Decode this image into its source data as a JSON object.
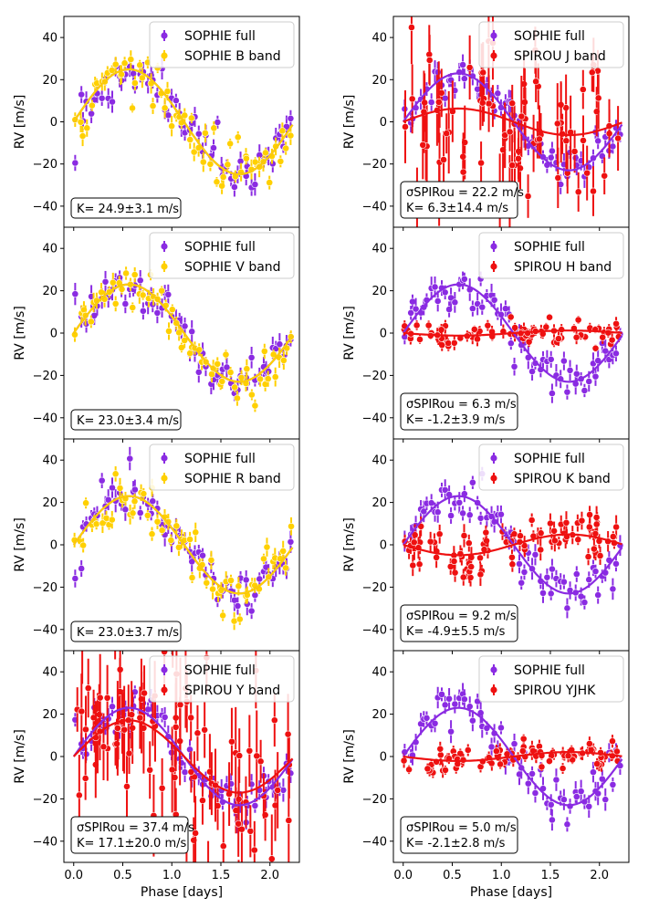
{
  "figure": {
    "ylabel": "RV [m/s]",
    "xlabel": "Phase [days]",
    "xticks": [
      "0.0",
      "0.5",
      "1.0",
      "1.5",
      "2.0"
    ],
    "yticks": [
      "40",
      "20",
      "0",
      "−20",
      "−40"
    ]
  },
  "colors": {
    "sophie_full": "#8a2be2",
    "sophie_band": "#ffd000",
    "spirou": "#ee1111"
  },
  "chart_data": [
    {
      "type": "scatter",
      "panel": "left-1",
      "xlim": [
        -0.1,
        2.3
      ],
      "ylim": [
        -50,
        50
      ],
      "series": [
        {
          "name": "SOPHIE full",
          "color": "purple",
          "model_amplitude": 24.9
        },
        {
          "name": "SOPHIE B band",
          "color": "yellow",
          "model_amplitude": 24.9
        }
      ],
      "legend": [
        "SOPHIE full",
        "SOPHIE B band"
      ],
      "legend_position": "top-right",
      "annotation": {
        "sigma": "",
        "k": "K= 24.9±3.1 m/s"
      }
    },
    {
      "type": "scatter",
      "panel": "right-1",
      "xlim": [
        -0.1,
        2.3
      ],
      "ylim": [
        -50,
        50
      ],
      "series": [
        {
          "name": "SOPHIE full",
          "color": "purple",
          "model_amplitude": 23.0
        },
        {
          "name": "SPIROU J band",
          "color": "red",
          "model_amplitude": 6.3
        }
      ],
      "legend": [
        "SOPHIE full",
        "SPIROU J band"
      ],
      "legend_position": "top-right",
      "annotation": {
        "sigma": "σSPIRou = 22.2 m/s",
        "k": "K= 6.3±14.4 m/s"
      }
    },
    {
      "type": "scatter",
      "panel": "left-2",
      "xlim": [
        -0.1,
        2.3
      ],
      "ylim": [
        -50,
        50
      ],
      "series": [
        {
          "name": "SOPHIE full",
          "color": "purple",
          "model_amplitude": 23.0
        },
        {
          "name": "SOPHIE V band",
          "color": "yellow",
          "model_amplitude": 23.0
        }
      ],
      "legend": [
        "SOPHIE full",
        "SOPHIE V band"
      ],
      "legend_position": "top-right",
      "annotation": {
        "sigma": "",
        "k": "K= 23.0±3.4 m/s"
      }
    },
    {
      "type": "scatter",
      "panel": "right-2",
      "xlim": [
        -0.1,
        2.3
      ],
      "ylim": [
        -50,
        50
      ],
      "series": [
        {
          "name": "SOPHIE full",
          "color": "purple",
          "model_amplitude": 23.0
        },
        {
          "name": "SPIROU H band",
          "color": "red",
          "model_amplitude": -1.2
        }
      ],
      "legend": [
        "SOPHIE full",
        "SPIROU H band"
      ],
      "legend_position": "top-right",
      "annotation": {
        "sigma": "σSPIRou = 6.3 m/s",
        "k": "K= -1.2±3.9 m/s"
      }
    },
    {
      "type": "scatter",
      "panel": "left-3",
      "xlim": [
        -0.1,
        2.3
      ],
      "ylim": [
        -50,
        50
      ],
      "series": [
        {
          "name": "SOPHIE full",
          "color": "purple",
          "model_amplitude": 23.0
        },
        {
          "name": "SOPHIE R band",
          "color": "yellow",
          "model_amplitude": 23.0
        }
      ],
      "legend": [
        "SOPHIE full",
        "SOPHIE R band"
      ],
      "legend_position": "top-right",
      "annotation": {
        "sigma": "",
        "k": "K= 23.0±3.7 m/s"
      }
    },
    {
      "type": "scatter",
      "panel": "right-3",
      "xlim": [
        -0.1,
        2.3
      ],
      "ylim": [
        -50,
        50
      ],
      "series": [
        {
          "name": "SOPHIE full",
          "color": "purple",
          "model_amplitude": 23.0
        },
        {
          "name": "SPIROU K band",
          "color": "red",
          "model_amplitude": -4.9
        }
      ],
      "legend": [
        "SOPHIE full",
        "SPIROU K band"
      ],
      "legend_position": "top-right",
      "annotation": {
        "sigma": "σSPIRou = 9.2 m/s",
        "k": "K= -4.9±5.5 m/s"
      }
    },
    {
      "type": "scatter",
      "panel": "left-4",
      "xlim": [
        -0.1,
        2.3
      ],
      "ylim": [
        -50,
        50
      ],
      "series": [
        {
          "name": "SOPHIE full",
          "color": "purple",
          "model_amplitude": 23.0
        },
        {
          "name": "SPIROU Y band",
          "color": "red",
          "model_amplitude": 17.1
        }
      ],
      "legend": [
        "SOPHIE full",
        "SPIROU Y band"
      ],
      "legend_position": "top-right",
      "annotation": {
        "sigma": "σSPIRou = 37.4 m/s",
        "k": "K= 17.1±20.0 m/s"
      }
    },
    {
      "type": "scatter",
      "panel": "right-4",
      "xlim": [
        -0.1,
        2.3
      ],
      "ylim": [
        -50,
        50
      ],
      "series": [
        {
          "name": "SOPHIE full",
          "color": "purple",
          "model_amplitude": 23.0
        },
        {
          "name": "SPIROU YJHK",
          "color": "red",
          "model_amplitude": -2.1
        }
      ],
      "legend": [
        "SOPHIE full",
        "SPIROU YJHK"
      ],
      "legend_position": "top-right",
      "annotation": {
        "sigma": "σSPIRou = 5.0 m/s",
        "k": "K= -2.1±2.8 m/s"
      }
    }
  ]
}
